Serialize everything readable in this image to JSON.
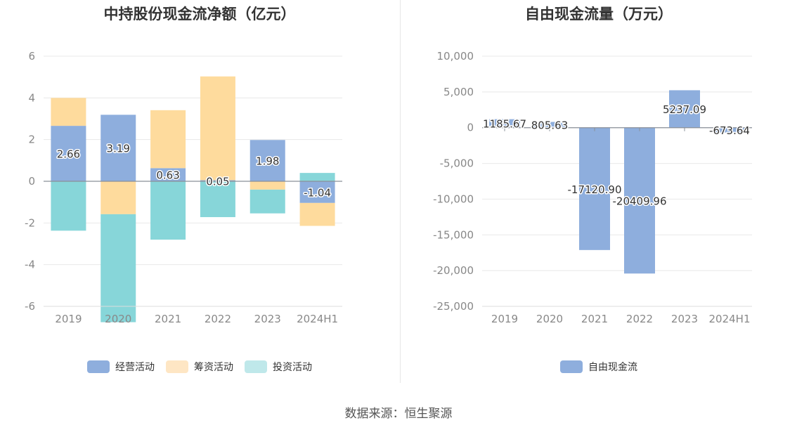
{
  "chart_data": [
    {
      "type": "bar",
      "stacked": true,
      "title": "中持股份现金流净额（亿元）",
      "categories": [
        "2019",
        "2020",
        "2021",
        "2022",
        "2023",
        "2024H1"
      ],
      "series": [
        {
          "name": "经营活动",
          "color": "#8eaedd",
          "values": [
            2.66,
            3.19,
            0.63,
            0.05,
            1.98,
            -1.04
          ],
          "labels": [
            "2.66",
            "3.19",
            "0.63",
            "0.05",
            "1.98",
            "-1.04"
          ]
        },
        {
          "name": "筹资活动",
          "color": "#fedb9d",
          "values": [
            1.34,
            -1.58,
            2.78,
            4.98,
            -0.4,
            -1.1
          ]
        },
        {
          "name": "投资活动",
          "color": "#87d6d9",
          "values": [
            -2.37,
            -5.18,
            -2.8,
            -1.72,
            -1.14,
            0.4
          ]
        }
      ],
      "ylim": [
        -6,
        6
      ],
      "yticks": [
        "-6",
        "-4",
        "-2",
        "0",
        "2",
        "4",
        "6"
      ],
      "grid": true,
      "legend_position": "bottom"
    },
    {
      "type": "bar",
      "title": "自由现金流量（万元）",
      "categories": [
        "2019",
        "2020",
        "2021",
        "2022",
        "2023",
        "2024H1"
      ],
      "series": [
        {
          "name": "自由现金流",
          "color": "#8eaedd",
          "values": [
            1185.67,
            805.63,
            -17120.9,
            -20409.96,
            5237.09,
            -673.64
          ],
          "labels": [
            "1185.67",
            "805.63",
            "-17120.90",
            "-20409.96",
            "5237.09",
            "-673.64"
          ]
        }
      ],
      "ylim": [
        -25000,
        10000
      ],
      "yticks": [
        "-25,000",
        "-20,000",
        "-15,000",
        "-10,000",
        "-5,000",
        "0",
        "5,000",
        "10,000"
      ],
      "grid": true,
      "legend_position": "bottom"
    }
  ],
  "source": "数据来源：恒生聚源"
}
